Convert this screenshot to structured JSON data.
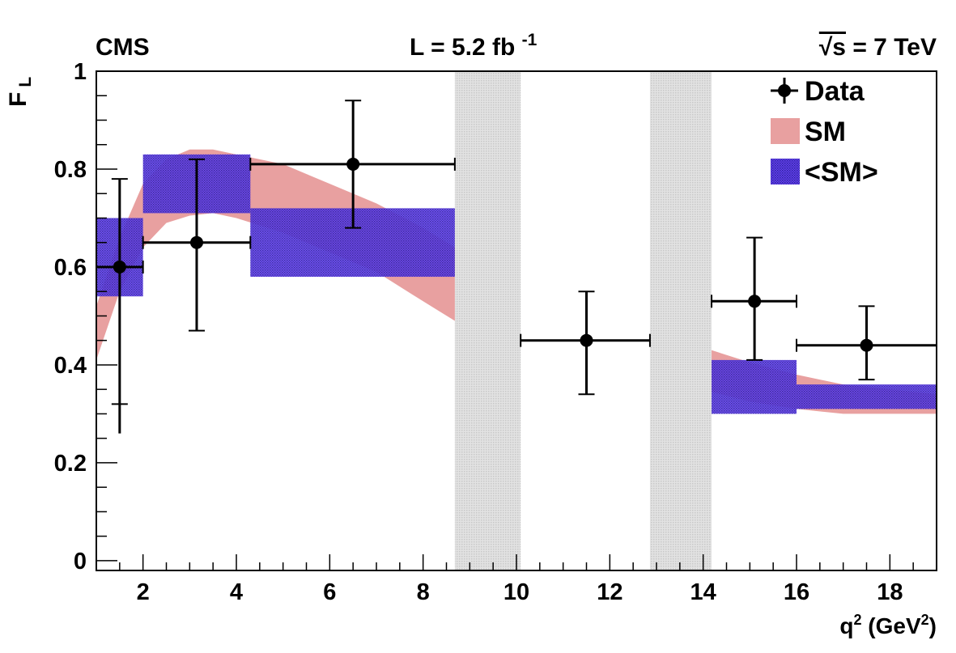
{
  "header": {
    "experiment": "CMS",
    "luminosity_prefix": "L = 5.2 fb",
    "luminosity_exponent": "-1",
    "energy_root": "√s",
    "energy_value": " = 7 TeV"
  },
  "chart_data": {
    "type": "scatter",
    "title": "",
    "ylabel_main": "F",
    "ylabel_sub": "L",
    "xlabel_main": "q",
    "xlabel_sup": "2",
    "xlabel_unit_open": " (GeV",
    "xlabel_unit_sup": "2",
    "xlabel_unit_close": ")",
    "xlim": [
      1,
      19
    ],
    "ylim": [
      -0.02,
      1.0
    ],
    "x_ticks": [
      2,
      4,
      6,
      8,
      10,
      12,
      14,
      16,
      18
    ],
    "x_tick_labels": [
      "2",
      "4",
      "6",
      "8",
      "10",
      "12",
      "14",
      "16",
      "18"
    ],
    "y_ticks": [
      0,
      0.2,
      0.4,
      0.6,
      0.8,
      1
    ],
    "y_tick_labels": [
      "0",
      "0.2",
      "0.4",
      "0.6",
      "0.8",
      "1"
    ],
    "vetoed_regions": [
      [
        8.68,
        10.09
      ],
      [
        12.86,
        14.18
      ]
    ],
    "data": [
      {
        "x": 1.5,
        "xlo": 1.0,
        "xhi": 2.0,
        "y": 0.6,
        "ylo": 0.26,
        "yhi": 0.78,
        "ystat_lo": 0.32
      },
      {
        "x": 3.15,
        "xlo": 2.0,
        "xhi": 4.3,
        "y": 0.65,
        "ylo": 0.47,
        "yhi": 0.82
      },
      {
        "x": 6.5,
        "xlo": 4.3,
        "xhi": 8.68,
        "y": 0.81,
        "ylo": 0.68,
        "yhi": 0.94
      },
      {
        "x": 11.5,
        "xlo": 10.09,
        "xhi": 12.86,
        "y": 0.45,
        "ylo": 0.34,
        "yhi": 0.55
      },
      {
        "x": 15.1,
        "xlo": 14.18,
        "xhi": 16.0,
        "y": 0.53,
        "ylo": 0.41,
        "yhi": 0.66
      },
      {
        "x": 17.5,
        "xlo": 16.0,
        "xhi": 19.0,
        "y": 0.44,
        "ylo": 0.37,
        "yhi": 0.52
      }
    ],
    "sm_band": [
      {
        "q2": 1.0,
        "lo": 0.41,
        "hi": 0.52
      },
      {
        "q2": 1.5,
        "lo": 0.55,
        "hi": 0.66
      },
      {
        "q2": 2.0,
        "lo": 0.64,
        "hi": 0.77
      },
      {
        "q2": 2.5,
        "lo": 0.69,
        "hi": 0.82
      },
      {
        "q2": 3.0,
        "lo": 0.705,
        "hi": 0.84
      },
      {
        "q2": 3.5,
        "lo": 0.71,
        "hi": 0.84
      },
      {
        "q2": 4.0,
        "lo": 0.7,
        "hi": 0.83
      },
      {
        "q2": 5.0,
        "lo": 0.67,
        "hi": 0.81
      },
      {
        "q2": 6.0,
        "lo": 0.63,
        "hi": 0.77
      },
      {
        "q2": 7.0,
        "lo": 0.59,
        "hi": 0.73
      },
      {
        "q2": 8.0,
        "lo": 0.53,
        "hi": 0.68
      },
      {
        "q2": 8.68,
        "lo": 0.49,
        "hi": 0.64
      },
      {
        "q2": 14.18,
        "lo": 0.345,
        "hi": 0.43
      },
      {
        "q2": 15.0,
        "lo": 0.325,
        "hi": 0.405
      },
      {
        "q2": 16.0,
        "lo": 0.31,
        "hi": 0.38
      },
      {
        "q2": 17.0,
        "lo": 0.3,
        "hi": 0.36
      },
      {
        "q2": 18.0,
        "lo": 0.3,
        "hi": 0.35
      },
      {
        "q2": 19.0,
        "lo": 0.3,
        "hi": 0.34
      }
    ],
    "sm_avg_bins": [
      {
        "xlo": 1.0,
        "xhi": 2.0,
        "lo": 0.54,
        "hi": 0.7
      },
      {
        "xlo": 2.0,
        "xhi": 4.3,
        "lo": 0.71,
        "hi": 0.83
      },
      {
        "xlo": 4.3,
        "xhi": 8.68,
        "lo": 0.58,
        "hi": 0.72
      },
      {
        "xlo": 14.18,
        "xhi": 16.0,
        "lo": 0.3,
        "hi": 0.41
      },
      {
        "xlo": 16.0,
        "xhi": 19.0,
        "lo": 0.31,
        "hi": 0.36
      }
    ],
    "legend": [
      {
        "key": "data",
        "label": "Data"
      },
      {
        "key": "sm",
        "label": "SM"
      },
      {
        "key": "smavg",
        "label": "<SM>"
      }
    ],
    "legend_position": "top-right",
    "colors": {
      "sm": "#e8a0a0",
      "smavg_fill": "#5a3ad8",
      "smavg_hatch": "#2b1aa8",
      "veto": "#d9d9d9",
      "data": "#000000"
    }
  }
}
